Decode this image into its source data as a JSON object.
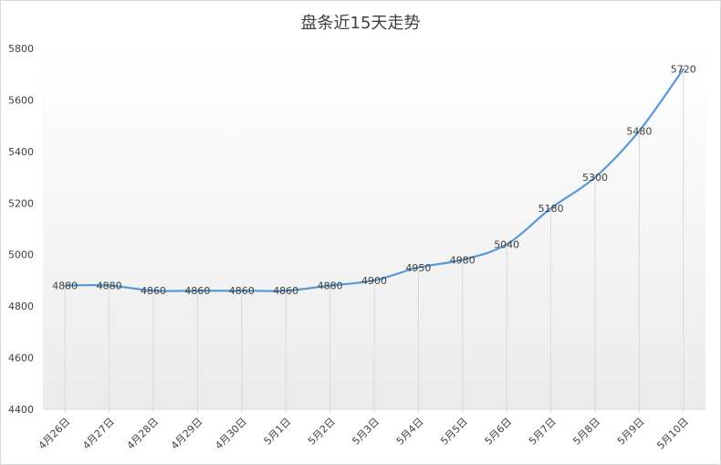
{
  "chart_data": {
    "type": "line",
    "title": "盘条近15天走势",
    "xlabel": "",
    "ylabel": "",
    "categories": [
      "4月26日",
      "4月27日",
      "4月28日",
      "4月29日",
      "4月30日",
      "5月1日",
      "5月2日",
      "5月3日",
      "5月4日",
      "5月5日",
      "5月6日",
      "5月7日",
      "5月8日",
      "5月9日",
      "5月10日"
    ],
    "series": [
      {
        "values": [
          4880,
          4880,
          4860,
          4860,
          4860,
          4860,
          4880,
          4900,
          4950,
          4980,
          5040,
          5180,
          5300,
          5480,
          5720
        ],
        "color": "#5b9bd5"
      }
    ],
    "ylim": [
      4400,
      5800
    ],
    "yticks": [
      4400,
      4600,
      4800,
      5000,
      5200,
      5400,
      5600,
      5800
    ],
    "grid": "vertical-drop-lines",
    "legend": "none",
    "background_gradient": [
      "#ffffff",
      "#ebebeb"
    ]
  }
}
